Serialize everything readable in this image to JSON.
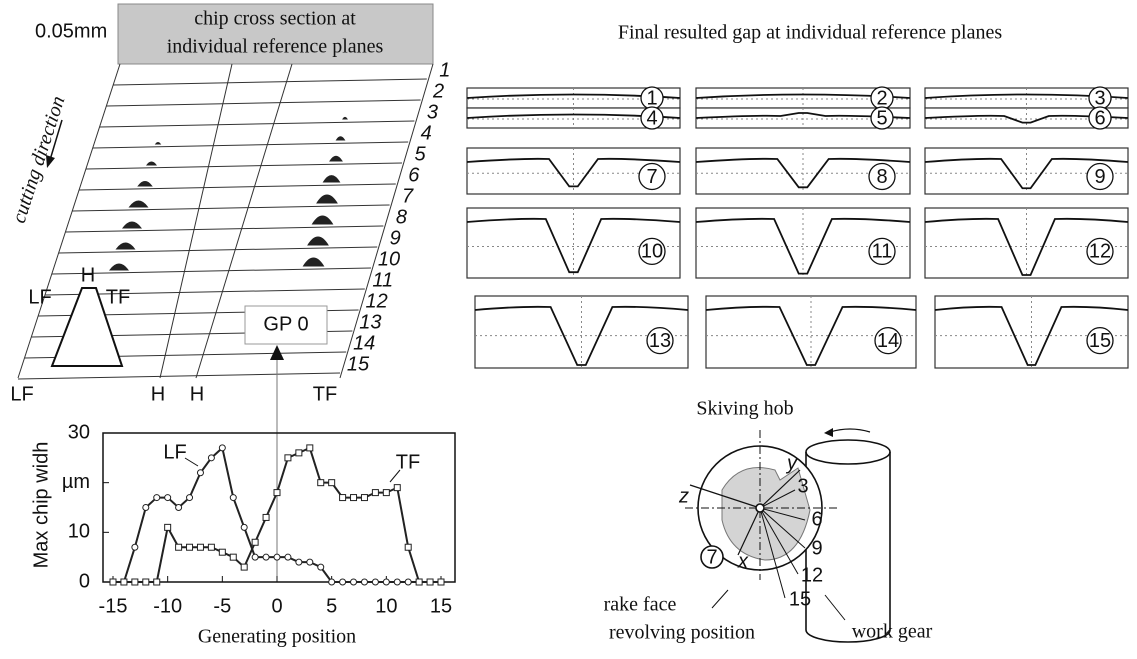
{
  "chart_data": {
    "type": "line",
    "y_label": "Max chip widh",
    "x_label": "Generating position",
    "x": [
      -15,
      -14,
      -13,
      -12,
      -11,
      -10,
      -9,
      -8,
      -7,
      -6,
      -5,
      -4,
      -3,
      -2,
      -1,
      0,
      1,
      2,
      3,
      4,
      5,
      6,
      7,
      8,
      9,
      10,
      11,
      12,
      13,
      14,
      15
    ],
    "series": [
      {
        "name": "LF",
        "color": "#222222",
        "marker": "circle",
        "values": [
          0,
          0,
          7,
          15,
          17,
          17,
          15,
          17,
          22,
          25,
          27,
          17,
          11,
          5,
          5,
          5,
          5,
          4,
          4,
          3,
          0,
          0,
          0,
          0,
          0,
          0,
          0,
          0,
          0,
          0,
          0
        ]
      },
      {
        "name": "TF",
        "color": "#222222",
        "marker": "square",
        "values": [
          0,
          0,
          0,
          0,
          0,
          11,
          7,
          7,
          7,
          7,
          6,
          5,
          3,
          8,
          13,
          18,
          25,
          26,
          27,
          20,
          20,
          17,
          17,
          17,
          18,
          18,
          19,
          7,
          0,
          0,
          0
        ]
      }
    ],
    "xlim": [
      -15,
      15
    ],
    "xticks": [
      -15,
      -10,
      -5,
      0,
      5,
      10,
      15
    ],
    "ylim": [
      0,
      30
    ],
    "yticks": [
      0,
      10,
      {
        "value": 20,
        "label": "µm"
      },
      30
    ]
  },
  "chip_section": {
    "title_lines": [
      "chip cross section at",
      "individual reference planes"
    ],
    "scale": "0.05mm",
    "direction": "cutting direction",
    "planes": [
      "1",
      "2",
      "3",
      "4",
      "5",
      "6",
      "7",
      "8",
      "9",
      "10",
      "11",
      "12",
      "13",
      "14",
      "15"
    ],
    "tooth_labels": [
      "LF",
      "H",
      "TF"
    ],
    "axis_labels": [
      "LF",
      "H",
      "H",
      "TF"
    ],
    "marker": "GP 0"
  },
  "gap_panels": {
    "title": "Final resulted gap at individual reference planes",
    "labels": [
      "1",
      "2",
      "3",
      "4",
      "5",
      "6",
      "7",
      "8",
      "9",
      "10",
      "11",
      "12",
      "13",
      "14",
      "15"
    ]
  },
  "skiving": {
    "hob": "Skiving hob",
    "gear": "work gear",
    "rake_lines": [
      "rake face",
      "revolving position"
    ],
    "axes": [
      "z",
      "y",
      "x"
    ],
    "positions": [
      "3",
      "6",
      "9",
      "12",
      "15"
    ],
    "plane": "7"
  }
}
